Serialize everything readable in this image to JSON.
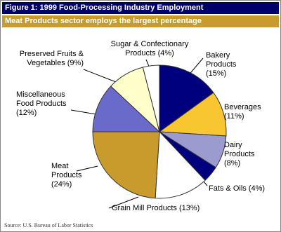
{
  "chart_data": {
    "type": "pie",
    "title": "Figure 1: 1999 Food-Processing Industry Employment",
    "subtitle": "Meat Products sector employs the largest percentage",
    "source": "Source: U.S. Bureau of Labor Statistics",
    "categories": [
      "Bakery Products",
      "Beverages",
      "Dairy Products",
      "Fats & Oils",
      "Grain Mill Products",
      "Meat Products",
      "Miscellaneous Food Products",
      "Preserved Fruits & Vegetables",
      "Sugar & Confectionary Products"
    ],
    "values": [
      15,
      11,
      8,
      4,
      13,
      24,
      12,
      9,
      4
    ],
    "value_labels": [
      "(15%)",
      "(11%)",
      "(8%)",
      "(4%)",
      "(13%)",
      "(24%)",
      "(12%)",
      "(9%)",
      "(4%)"
    ],
    "colors": [
      "#00007f",
      "#f7c631",
      "#9b9bd0",
      "#00007f",
      "#ffffff",
      "#c99b2c",
      "#6a6acb",
      "#ffffcc",
      "#ffffff"
    ]
  }
}
